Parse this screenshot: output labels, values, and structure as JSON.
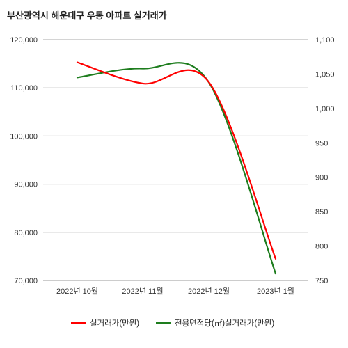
{
  "chart_data": {
    "type": "line",
    "title": "부산광역시 해운대구 우동 아파트 실거래가",
    "categories": [
      "2022년 10월",
      "2022년 11월",
      "2022년 12월",
      "2023년 1월"
    ],
    "y_left": {
      "range": [
        70000,
        120000
      ],
      "ticks": [
        70000,
        80000,
        90000,
        100000,
        110000,
        120000
      ],
      "tick_labels": [
        "70,000",
        "80,000",
        "90,000",
        "100,000",
        "110,000",
        "120,000"
      ]
    },
    "y_right": {
      "range": [
        750,
        1100
      ],
      "ticks": [
        750,
        800,
        850,
        900,
        950,
        1000,
        1050,
        1100
      ],
      "tick_labels": [
        "750",
        "800",
        "850",
        "900",
        "950",
        "1,000",
        "1,050",
        "1,100"
      ]
    },
    "grid": "horizontal",
    "legend_position": "bottom",
    "series": [
      {
        "name": "실거래가(만원)",
        "axis": "left",
        "color": "#ff0000",
        "values": [
          115300,
          110900,
          111200,
          74500
        ]
      },
      {
        "name": "전용면적당(㎡)실거래가(만원)",
        "axis": "right",
        "color": "#1e7d1e",
        "values": [
          1045,
          1058,
          1038,
          760
        ]
      }
    ]
  }
}
